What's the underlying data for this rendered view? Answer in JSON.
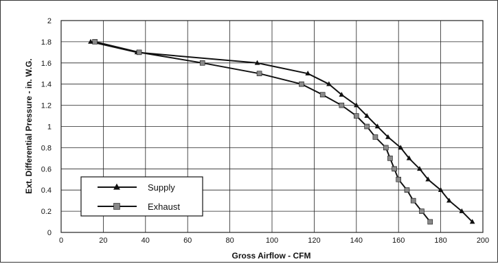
{
  "chart_data": {
    "type": "line",
    "xlabel": "Gross Airflow - CFM",
    "ylabel": "Ext. Differential Pressure - in. W.G.",
    "xlim": [
      0,
      200
    ],
    "ylim": [
      0,
      2
    ],
    "x_ticks": [
      "0",
      "20",
      "40",
      "60",
      "80",
      "100",
      "120",
      "140",
      "160",
      "180",
      "200"
    ],
    "y_ticks": [
      "0",
      "0.2",
      "0.4",
      "0.6",
      "0.8",
      "1",
      "1.2",
      "1.4",
      "1.6",
      "1.8",
      "2"
    ],
    "grid": true,
    "legend_position": "bottom-left",
    "series": [
      {
        "name": "Supply",
        "marker": "triangle",
        "color": "#111111",
        "points": [
          [
            14,
            1.8
          ],
          [
            36,
            1.7
          ],
          [
            93,
            1.6
          ],
          [
            117,
            1.5
          ],
          [
            127,
            1.4
          ],
          [
            133,
            1.3
          ],
          [
            140,
            1.2
          ],
          [
            145,
            1.1
          ],
          [
            150,
            1.0
          ],
          [
            155,
            0.9
          ],
          [
            161,
            0.8
          ],
          [
            165,
            0.7
          ],
          [
            170,
            0.6
          ],
          [
            174,
            0.5
          ],
          [
            180,
            0.4
          ],
          [
            184,
            0.3
          ],
          [
            190,
            0.2
          ],
          [
            195,
            0.1
          ]
        ]
      },
      {
        "name": "Exhaust",
        "marker": "square",
        "color": "#111111",
        "points": [
          [
            16,
            1.8
          ],
          [
            37,
            1.7
          ],
          [
            67,
            1.6
          ],
          [
            94,
            1.5
          ],
          [
            114,
            1.4
          ],
          [
            124,
            1.3
          ],
          [
            133,
            1.2
          ],
          [
            140,
            1.1
          ],
          [
            145,
            1.0
          ],
          [
            149,
            0.9
          ],
          [
            154,
            0.8
          ],
          [
            156,
            0.7
          ],
          [
            158,
            0.6
          ],
          [
            160,
            0.5
          ],
          [
            164,
            0.4
          ],
          [
            167,
            0.3
          ],
          [
            171,
            0.2
          ],
          [
            175,
            0.1
          ]
        ]
      }
    ]
  }
}
